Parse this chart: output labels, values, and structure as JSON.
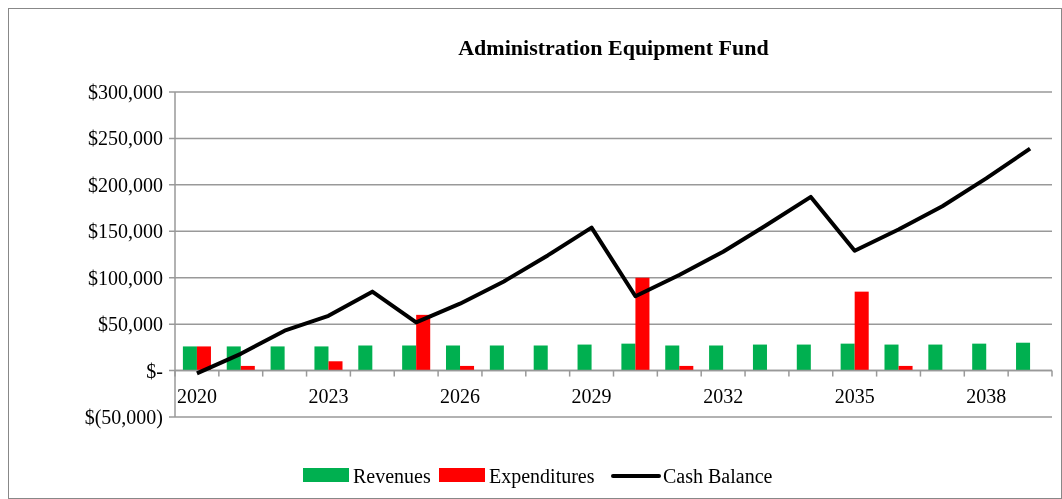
{
  "chart_data": {
    "type": "bar",
    "title": "Administration Equipment Fund",
    "categories": [
      "2020",
      null,
      null,
      "2023",
      null,
      null,
      "2026",
      null,
      null,
      "2029",
      null,
      null,
      "2032",
      null,
      null,
      "2035",
      null,
      null,
      "2038",
      null
    ],
    "series": [
      {
        "name": "Revenues",
        "color": "#00b050",
        "values": [
          26000,
          26000,
          26000,
          26000,
          27000,
          27000,
          27000,
          27000,
          27000,
          28000,
          29000,
          27000,
          27000,
          28000,
          28000,
          29000,
          28000,
          28000,
          29000,
          30000
        ]
      },
      {
        "name": "Expenditures",
        "color": "#ff0000",
        "values": [
          26000,
          5000,
          0,
          10000,
          0,
          60000,
          5000,
          0,
          0,
          0,
          100000,
          5000,
          0,
          0,
          0,
          85000,
          5000,
          0,
          0,
          0
        ]
      },
      {
        "name": "Cash Balance",
        "type": "line",
        "color": "#000000",
        "values": [
          -3000,
          18000,
          43000,
          59000,
          85000,
          52000,
          72000,
          96000,
          124000,
          154000,
          80000,
          103000,
          128000,
          157000,
          187000,
          129000,
          152000,
          177000,
          207000,
          239000
        ]
      }
    ],
    "ylim": [
      -50000,
      300000
    ],
    "yticks": [
      {
        "value": -50000,
        "label": "$(50,000)"
      },
      {
        "value": 0,
        "label": "$-"
      },
      {
        "value": 50000,
        "label": "$50,000"
      },
      {
        "value": 100000,
        "label": "$100,000"
      },
      {
        "value": 150000,
        "label": "$150,000"
      },
      {
        "value": 200000,
        "label": "$200,000"
      },
      {
        "value": 250000,
        "label": "$250,000"
      },
      {
        "value": 300000,
        "label": "$300,000"
      }
    ],
    "grid": "y",
    "legend": "bottom",
    "marker": "none",
    "line_style": "solid"
  }
}
